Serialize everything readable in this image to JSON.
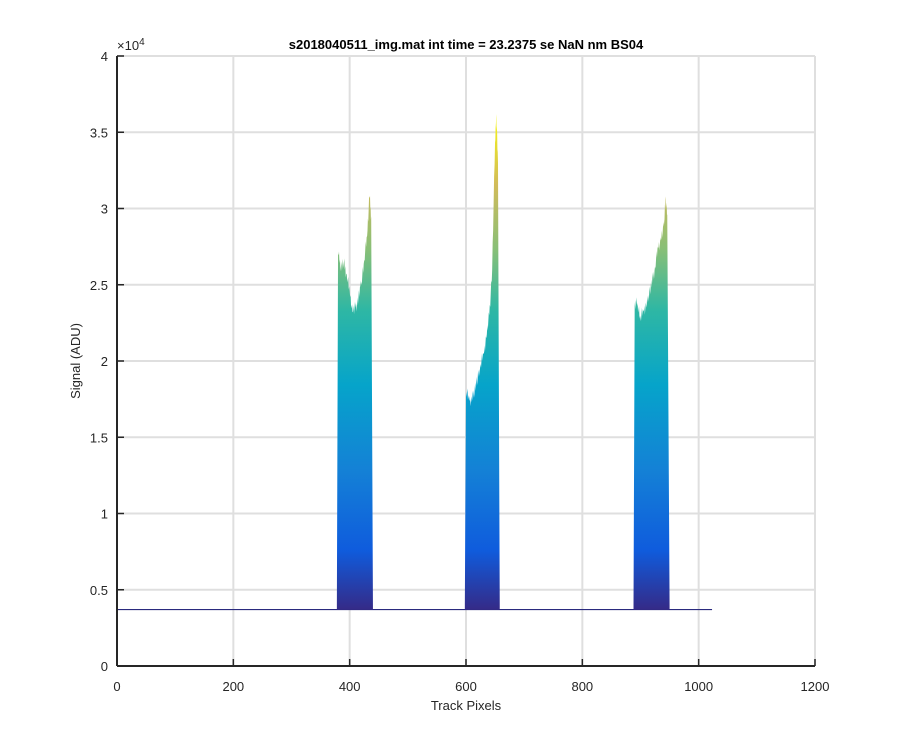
{
  "chart_data": {
    "type": "area",
    "title": "s2018040511_img.mat int time = 23.2375 se  NaN nm BS04",
    "xlabel": "Track Pixels",
    "ylabel": "Signal (ADU)",
    "xlim": [
      0,
      1200
    ],
    "ylim": [
      0,
      40000
    ],
    "y_exponent_label": "×10",
    "y_exponent_power": "4",
    "x_ticks": [
      0,
      200,
      400,
      600,
      800,
      1000,
      1200
    ],
    "x_tick_labels": [
      "0",
      "200",
      "400",
      "600",
      "800",
      "1000",
      "1200"
    ],
    "y_ticks": [
      0,
      5000,
      10000,
      15000,
      20000,
      25000,
      30000,
      35000,
      40000
    ],
    "y_tick_labels": [
      "0",
      "0.5",
      "1",
      "1.5",
      "2",
      "2.5",
      "3",
      "3.5",
      "4"
    ],
    "grid": true,
    "colormap": "parula",
    "baseline": 3700,
    "x_range": [
      0,
      1023
    ],
    "peaks": [
      {
        "x": [
          378,
          380,
          385,
          390,
          395,
          400,
          405,
          410,
          415,
          420,
          425,
          430,
          434,
          437,
          440
        ],
        "y": [
          4000,
          27000,
          26200,
          26400,
          25700,
          24600,
          23200,
          23500,
          24100,
          25200,
          26600,
          28200,
          30800,
          29500,
          4000
        ]
      },
      {
        "x": [
          598,
          600,
          605,
          610,
          615,
          620,
          625,
          630,
          635,
          640,
          645,
          650,
          652,
          655,
          658
        ],
        "y": [
          4000,
          18000,
          17500,
          17300,
          18200,
          18800,
          19800,
          20500,
          21500,
          23000,
          26000,
          34500,
          36200,
          33000,
          4000
        ]
      },
      {
        "x": [
          888,
          890,
          895,
          900,
          905,
          910,
          915,
          920,
          925,
          930,
          935,
          940,
          943,
          946,
          950
        ],
        "y": [
          4000,
          23600,
          23800,
          22800,
          23300,
          23500,
          24500,
          25200,
          26200,
          27500,
          27900,
          28800,
          30600,
          29600,
          4000
        ]
      }
    ]
  }
}
